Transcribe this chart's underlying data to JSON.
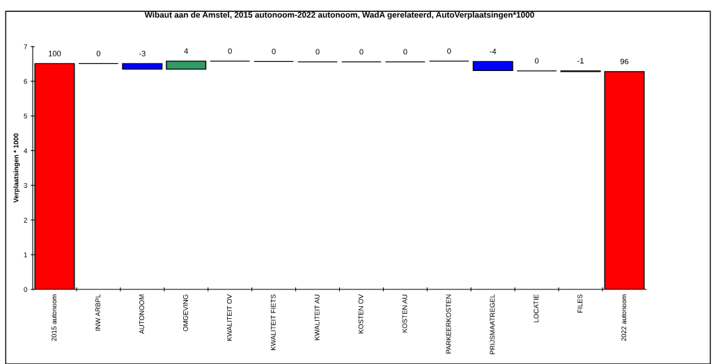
{
  "chart_data": {
    "type": "bar",
    "title": "Wibaut aan de Amstel, 2015 autonoom-2022 autonoom, WadA gerelateerd, AutoVerplaatsingen*1000",
    "ylabel": "Verplaatsingen * 1000",
    "categories": [
      "2015 autonoom",
      "INW ARBPL",
      "AUTONOOM",
      "OMGEVING",
      "KWALITEIT OV",
      "KWALITEIT FIETS",
      "KWALITEIT AU",
      "KOSTEN OV",
      "KOSTEN AU",
      "PARKEERKOSTEN",
      "PRIJSMAATREGEL",
      "LOCATIE",
      "FILES",
      "2022 autonoom"
    ],
    "base": [
      0,
      6.51,
      6.51,
      6.35,
      6.58,
      6.57,
      6.56,
      6.56,
      6.56,
      6.58,
      6.57,
      6.3,
      6.3,
      0
    ],
    "values": [
      6.51,
      0,
      -0.16,
      0.23,
      0,
      0,
      0,
      0,
      0,
      0,
      -0.26,
      0,
      -0.02,
      6.28
    ],
    "colors": [
      "#ff0000",
      "#000000",
      "#0000ff",
      "#339966",
      "#000000",
      "#000000",
      "#000000",
      "#000000",
      "#000000",
      "#000000",
      "#0000ff",
      "#000000",
      "#000000",
      "#ff0000"
    ],
    "annotations": [
      {
        "text": "100",
        "x": "2015 autonoom",
        "y": 6.51
      },
      {
        "text": "0",
        "x": "INW ARBPL",
        "y": 6.51
      },
      {
        "text": "-3",
        "x": "AUTONOOM",
        "y": 6.51
      },
      {
        "text": "4",
        "x": "OMGEVING",
        "y": 6.58
      },
      {
        "text": "0",
        "x": "KWALITEIT OV",
        "y": 6.58
      },
      {
        "text": "0",
        "x": "KWALITEIT FIETS",
        "y": 6.57
      },
      {
        "text": "0",
        "x": "KWALITEIT AU",
        "y": 6.56
      },
      {
        "text": "0",
        "x": "KOSTEN OV",
        "y": 6.56
      },
      {
        "text": "0",
        "x": "KOSTEN AU",
        "y": 6.56
      },
      {
        "text": "0",
        "x": "PARKEERKOSTEN",
        "y": 6.58
      },
      {
        "text": "-4",
        "x": "PRIJSMAATREGEL",
        "y": 6.57
      },
      {
        "text": "0",
        "x": "LOCATIE",
        "y": 6.3
      },
      {
        "text": "-1",
        "x": "FILES",
        "y": 6.3
      },
      {
        "text": "96",
        "x": "2022 autonoom",
        "y": 6.28
      }
    ],
    "ylim": [
      0,
      7
    ],
    "yticks": [
      0,
      1,
      2,
      3,
      4,
      5,
      6,
      7
    ],
    "grid": false,
    "legend": false
  }
}
